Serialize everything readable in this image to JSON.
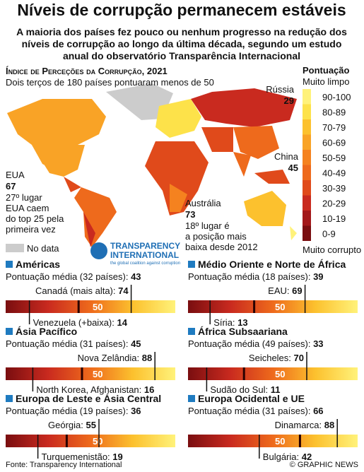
{
  "header": {
    "title": "Níveis de corrupção permanecem estáveis",
    "subtitle": [
      "A maioria dos países fez pouco ou nenhum progresso na redução dos",
      "níveis de corrupção ao longo da última década, segundo um estudo",
      "anual do observatório Transparência Internacional"
    ]
  },
  "map": {
    "title": "Índice de Perceções da Corrupção, 2021",
    "subtitle": "Dois terços de 180 países pontuaram menos de 50",
    "no_data": "No data",
    "labels": [
      {
        "name": "Rússia",
        "score": 29
      },
      {
        "name": "China",
        "score": 45
      },
      {
        "name": "EUA",
        "score": 67,
        "note": [
          "27º lugar",
          "EUA caem",
          "do top 25 pela",
          "primeira vez"
        ]
      },
      {
        "name": "Austrália",
        "score": 73,
        "note": [
          "18º lugar é",
          "a posição mais",
          "baixa desde 2012"
        ]
      }
    ],
    "logo": {
      "line1": "TRANSPARENCY",
      "line2": "INTERNATIONAL",
      "tagline": "the global coalition against corruption"
    }
  },
  "legend": {
    "title": "Pontuação",
    "top": "Muito limpo",
    "bottom": "Muito corrupto",
    "items": [
      {
        "label": "90-100",
        "color": "#fff27a"
      },
      {
        "label": "80-89",
        "color": "#fde24a"
      },
      {
        "label": "70-79",
        "color": "#fcc12e"
      },
      {
        "label": "60-69",
        "color": "#f9a326"
      },
      {
        "label": "50-59",
        "color": "#f5821f"
      },
      {
        "label": "40-49",
        "color": "#ee6a1c"
      },
      {
        "label": "30-39",
        "color": "#e04a1b"
      },
      {
        "label": "20-29",
        "color": "#c92a1f"
      },
      {
        "label": "10-19",
        "color": "#a3181a"
      },
      {
        "label": "0-9",
        "color": "#7a0e10"
      }
    ]
  },
  "scale_mark": 50,
  "regions": [
    {
      "name": "Américas",
      "average_label": "Pontuação média (32 países):",
      "average": 43,
      "high_label": "Canadá (mais alta):",
      "high": 74,
      "low_label": "Venezuela (+baixa):",
      "low": 14
    },
    {
      "name": "Médio Oriente e Norte de África",
      "average_label": "Pontuação média (18 países):",
      "average": 39,
      "high_label": "EAU:",
      "high": 69,
      "low_label": "Síria:",
      "low": 13
    },
    {
      "name": "Ásia Pacífico",
      "average_label": "Pontuação média (31 países):",
      "average": 45,
      "high_label": "Nova Zelândia:",
      "high": 88,
      "low_label": "North Korea, Afghanistan:",
      "low": 16
    },
    {
      "name": "África Subsaariana",
      "average_label": "Pontuação média (49 países):",
      "average": 33,
      "high_label": "Seicheles:",
      "high": 70,
      "low_label": "Sudão do Sul:",
      "low": 11
    },
    {
      "name": "Europa de Leste e Ásia Central",
      "average_label": "Pontuação média (19 países):",
      "average": 36,
      "high_label": "Geórgia:",
      "high": 55,
      "low_label": "Turquemenistão:",
      "low": 19
    },
    {
      "name": "Europa Ocidental e UE",
      "average_label": "Pontuação média (31 países):",
      "average": 66,
      "high_label": "Dinamarca:",
      "high": 88,
      "low_label": "Bulgária:",
      "low": 42
    }
  ],
  "footer": {
    "source": "Fonte: Transparency International",
    "credit": "© GRAPHIC NEWS"
  }
}
